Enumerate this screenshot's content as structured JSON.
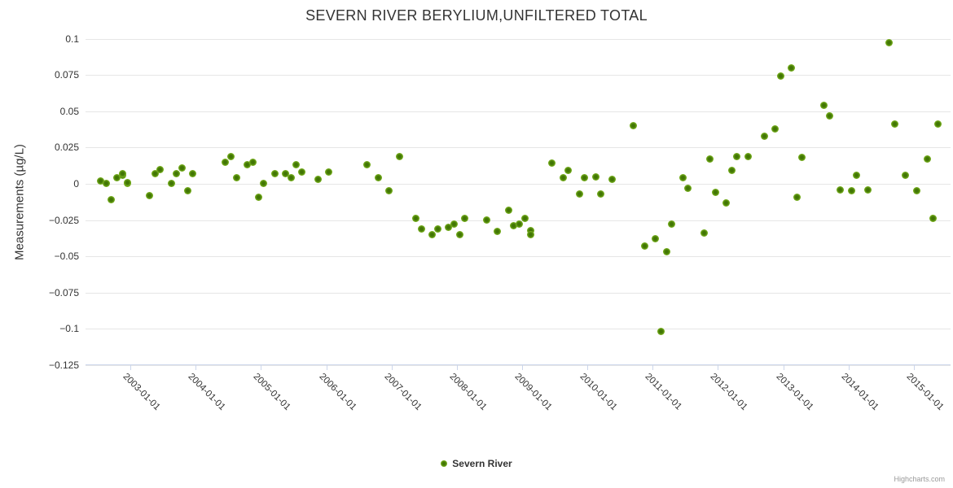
{
  "page": {
    "title": "SEVERN RIVER BERYLIUM,UNFILTERED TOTAL",
    "credits": "Highcharts.com"
  },
  "legend": {
    "items": [
      {
        "label": "Severn River"
      }
    ]
  },
  "colors": {
    "title": "#333333",
    "axis_label": "#333333",
    "gridline": "#e6e6e6",
    "axis_line": "#ccd6eb",
    "marker_outer": "#8cc41f",
    "marker_inner": "#3f7203",
    "credits": "#999999",
    "background": "#ffffff"
  },
  "chart_data": {
    "type": "scatter",
    "title": "SEVERN RIVER BERYLIUM,UNFILTERED TOTAL",
    "xlabel": "",
    "ylabel": "Measurements (µg/L)",
    "grid": "horizontal-only",
    "legend_position": "bottom-center",
    "x_tick_rotation": 45,
    "x_ticks": [
      "2003-01-01",
      "2004-01-01",
      "2005-01-01",
      "2006-01-01",
      "2007-01-01",
      "2008-01-01",
      "2009-01-01",
      "2010-01-01",
      "2011-01-01",
      "2012-01-01",
      "2013-01-01",
      "2014-01-01",
      "2015-01-01"
    ],
    "y_ticks": [
      0.1,
      0.075,
      0.05,
      0.025,
      0,
      -0.025,
      -0.05,
      -0.075,
      -0.1,
      -0.125
    ],
    "ylim": [
      -0.125,
      0.1
    ],
    "xlim_year_fraction": [
      2002.3125,
      2015.5625
    ],
    "series": [
      {
        "name": "Severn River",
        "points": [
          [
            "2002-07",
            0.002
          ],
          [
            "2002-08",
            0.0
          ],
          [
            "2002-09",
            -0.011
          ],
          [
            "2002-10",
            0.004
          ],
          [
            "2002-11",
            0.006
          ],
          [
            "2002-11",
            0.007
          ],
          [
            "2002-12",
            0.0
          ],
          [
            "2002-12",
            0.001
          ],
          [
            "2003-04",
            -0.008
          ],
          [
            "2003-05",
            0.007
          ],
          [
            "2003-06",
            0.01
          ],
          [
            "2003-08",
            0.0
          ],
          [
            "2003-09",
            0.007
          ],
          [
            "2003-10",
            0.011
          ],
          [
            "2003-11",
            -0.005
          ],
          [
            "2003-12",
            0.007
          ],
          [
            "2004-06",
            0.015
          ],
          [
            "2004-07",
            0.019
          ],
          [
            "2004-08",
            0.004
          ],
          [
            "2004-10",
            0.013
          ],
          [
            "2004-11",
            0.015
          ],
          [
            "2004-12",
            -0.009
          ],
          [
            "2005-01",
            0.0
          ],
          [
            "2005-03",
            0.007
          ],
          [
            "2005-05",
            0.007
          ],
          [
            "2005-06",
            0.004
          ],
          [
            "2005-07",
            0.013
          ],
          [
            "2005-08",
            0.008
          ],
          [
            "2005-11",
            0.003
          ],
          [
            "2006-01",
            0.008
          ],
          [
            "2006-08",
            0.013
          ],
          [
            "2006-10",
            0.004
          ],
          [
            "2006-12",
            -0.005
          ],
          [
            "2007-02",
            0.019
          ],
          [
            "2007-05",
            -0.024
          ],
          [
            "2007-06",
            -0.031
          ],
          [
            "2007-08",
            -0.035
          ],
          [
            "2007-09",
            -0.031
          ],
          [
            "2007-11",
            -0.03
          ],
          [
            "2007-12",
            -0.028
          ],
          [
            "2008-01",
            -0.035
          ],
          [
            "2008-02",
            -0.024
          ],
          [
            "2008-06",
            -0.025
          ],
          [
            "2008-08",
            -0.033
          ],
          [
            "2008-10",
            -0.018
          ],
          [
            "2008-11",
            -0.029
          ],
          [
            "2008-12",
            -0.028
          ],
          [
            "2009-01",
            -0.024
          ],
          [
            "2009-02",
            -0.032
          ],
          [
            "2009-02",
            -0.035
          ],
          [
            "2009-06",
            0.014
          ],
          [
            "2009-08",
            0.004
          ],
          [
            "2009-09",
            0.009
          ],
          [
            "2009-11",
            -0.007
          ],
          [
            "2009-12",
            0.004
          ],
          [
            "2010-02",
            0.005
          ],
          [
            "2010-03",
            -0.007
          ],
          [
            "2010-05",
            0.003
          ],
          [
            "2010-09",
            0.04
          ],
          [
            "2010-11",
            -0.043
          ],
          [
            "2011-01",
            -0.038
          ],
          [
            "2011-02",
            -0.102
          ],
          [
            "2011-03",
            -0.047
          ],
          [
            "2011-04",
            -0.028
          ],
          [
            "2011-06",
            0.004
          ],
          [
            "2011-07",
            -0.003
          ],
          [
            "2011-10",
            -0.034
          ],
          [
            "2011-11",
            0.017
          ],
          [
            "2011-12",
            -0.006
          ],
          [
            "2012-02",
            -0.013
          ],
          [
            "2012-03",
            0.009
          ],
          [
            "2012-04",
            0.019
          ],
          [
            "2012-06",
            0.019
          ],
          [
            "2012-09",
            0.033
          ],
          [
            "2012-11",
            0.038
          ],
          [
            "2012-12",
            0.074
          ],
          [
            "2013-02",
            0.08
          ],
          [
            "2013-03",
            -0.009
          ],
          [
            "2013-04",
            0.018
          ],
          [
            "2013-08",
            0.054
          ],
          [
            "2013-09",
            0.047
          ],
          [
            "2013-11",
            -0.004
          ],
          [
            "2014-01",
            -0.005
          ],
          [
            "2014-02",
            0.006
          ],
          [
            "2014-04",
            -0.004
          ],
          [
            "2014-08",
            0.097
          ],
          [
            "2014-09",
            0.041
          ],
          [
            "2014-11",
            0.006
          ],
          [
            "2015-01",
            -0.005
          ],
          [
            "2015-03",
            0.017
          ],
          [
            "2015-04",
            -0.024
          ],
          [
            "2015-05",
            0.041
          ]
        ]
      }
    ]
  }
}
